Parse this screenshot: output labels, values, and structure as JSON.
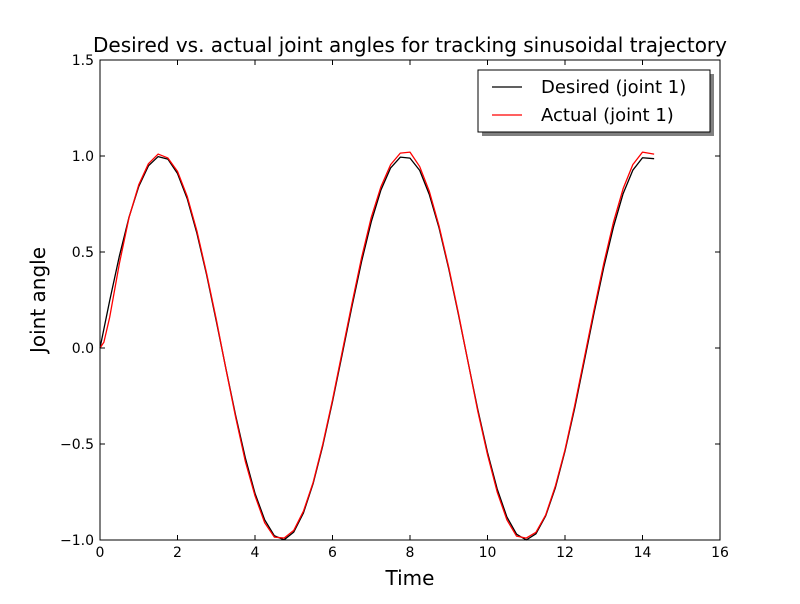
{
  "chart_data": {
    "type": "line",
    "title": "Desired vs. actual joint angles for tracking sinusoidal trajectory",
    "xlabel": "Time",
    "ylabel": "Joint angle",
    "xlim": [
      0,
      16
    ],
    "ylim": [
      -1.0,
      1.5
    ],
    "x_ticks": [
      0,
      2,
      4,
      6,
      8,
      10,
      12,
      14,
      16
    ],
    "x_tick_labels": [
      "0",
      "2",
      "4",
      "6",
      "8",
      "10",
      "12",
      "14",
      "16"
    ],
    "y_ticks": [
      -1.0,
      -0.5,
      0.0,
      0.5,
      1.0,
      1.5
    ],
    "y_tick_labels": [
      "−1.0",
      "−0.5",
      "0.0",
      "0.5",
      "1.0",
      "1.5"
    ],
    "grid": false,
    "legend_position": "top-right",
    "legend_shadow": true,
    "series": [
      {
        "name": "Desired (joint 1)",
        "color": "#000000",
        "x": [
          0,
          0.25,
          0.5,
          0.75,
          1.0,
          1.25,
          1.5,
          1.75,
          2.0,
          2.25,
          2.5,
          2.75,
          3.0,
          3.25,
          3.5,
          3.75,
          4.0,
          4.25,
          4.5,
          4.75,
          5.0,
          5.25,
          5.5,
          5.75,
          6.0,
          6.25,
          6.5,
          6.75,
          7.0,
          7.25,
          7.5,
          7.75,
          8.0,
          8.25,
          8.5,
          8.75,
          9.0,
          9.25,
          9.5,
          9.75,
          10.0,
          10.25,
          10.5,
          10.75,
          11.0,
          11.25,
          11.5,
          11.75,
          12.0,
          12.25,
          12.5,
          12.75,
          13.0,
          13.25,
          13.5,
          13.75,
          14.0,
          14.3
        ],
        "y": [
          0.0,
          0.247,
          0.479,
          0.682,
          0.841,
          0.949,
          0.997,
          0.984,
          0.909,
          0.778,
          0.598,
          0.382,
          0.141,
          -0.108,
          -0.351,
          -0.572,
          -0.757,
          -0.895,
          -0.978,
          -0.999,
          -0.959,
          -0.859,
          -0.706,
          -0.508,
          -0.279,
          -0.033,
          0.215,
          0.45,
          0.657,
          0.823,
          0.938,
          0.994,
          0.989,
          0.925,
          0.798,
          0.625,
          0.412,
          0.174,
          -0.075,
          -0.321,
          -0.544,
          -0.734,
          -0.88,
          -0.97,
          -1.0,
          -0.968,
          -0.875,
          -0.729,
          -0.537,
          -0.313,
          -0.066,
          0.183,
          0.42,
          0.63,
          0.804,
          0.926,
          0.991,
          0.986
        ]
      },
      {
        "name": "Actual (joint 1)",
        "color": "#ff0000",
        "x": [
          0,
          0.1,
          0.25,
          0.5,
          0.75,
          1.0,
          1.25,
          1.5,
          1.75,
          2.0,
          2.25,
          2.5,
          2.75,
          3.0,
          3.25,
          3.5,
          3.75,
          4.0,
          4.25,
          4.5,
          4.75,
          5.0,
          5.25,
          5.5,
          5.75,
          6.0,
          6.25,
          6.5,
          6.75,
          7.0,
          7.25,
          7.5,
          7.75,
          8.0,
          8.25,
          8.5,
          8.75,
          9.0,
          9.25,
          9.5,
          9.75,
          10.0,
          10.25,
          10.5,
          10.75,
          11.0,
          11.25,
          11.5,
          11.75,
          12.0,
          12.25,
          12.5,
          12.75,
          13.0,
          13.25,
          13.5,
          13.75,
          14.0,
          14.3
        ],
        "y": [
          0.0,
          0.03,
          0.16,
          0.44,
          0.68,
          0.85,
          0.96,
          1.01,
          0.99,
          0.92,
          0.79,
          0.61,
          0.39,
          0.15,
          -0.11,
          -0.36,
          -0.59,
          -0.77,
          -0.91,
          -0.985,
          -0.99,
          -0.95,
          -0.85,
          -0.7,
          -0.5,
          -0.27,
          -0.02,
          0.23,
          0.47,
          0.68,
          0.84,
          0.955,
          1.015,
          1.02,
          0.945,
          0.815,
          0.635,
          0.42,
          0.18,
          -0.075,
          -0.33,
          -0.555,
          -0.75,
          -0.895,
          -0.98,
          -0.99,
          -0.96,
          -0.87,
          -0.72,
          -0.53,
          -0.3,
          -0.05,
          0.2,
          0.44,
          0.655,
          0.83,
          0.955,
          1.02,
          1.01
        ]
      }
    ]
  }
}
